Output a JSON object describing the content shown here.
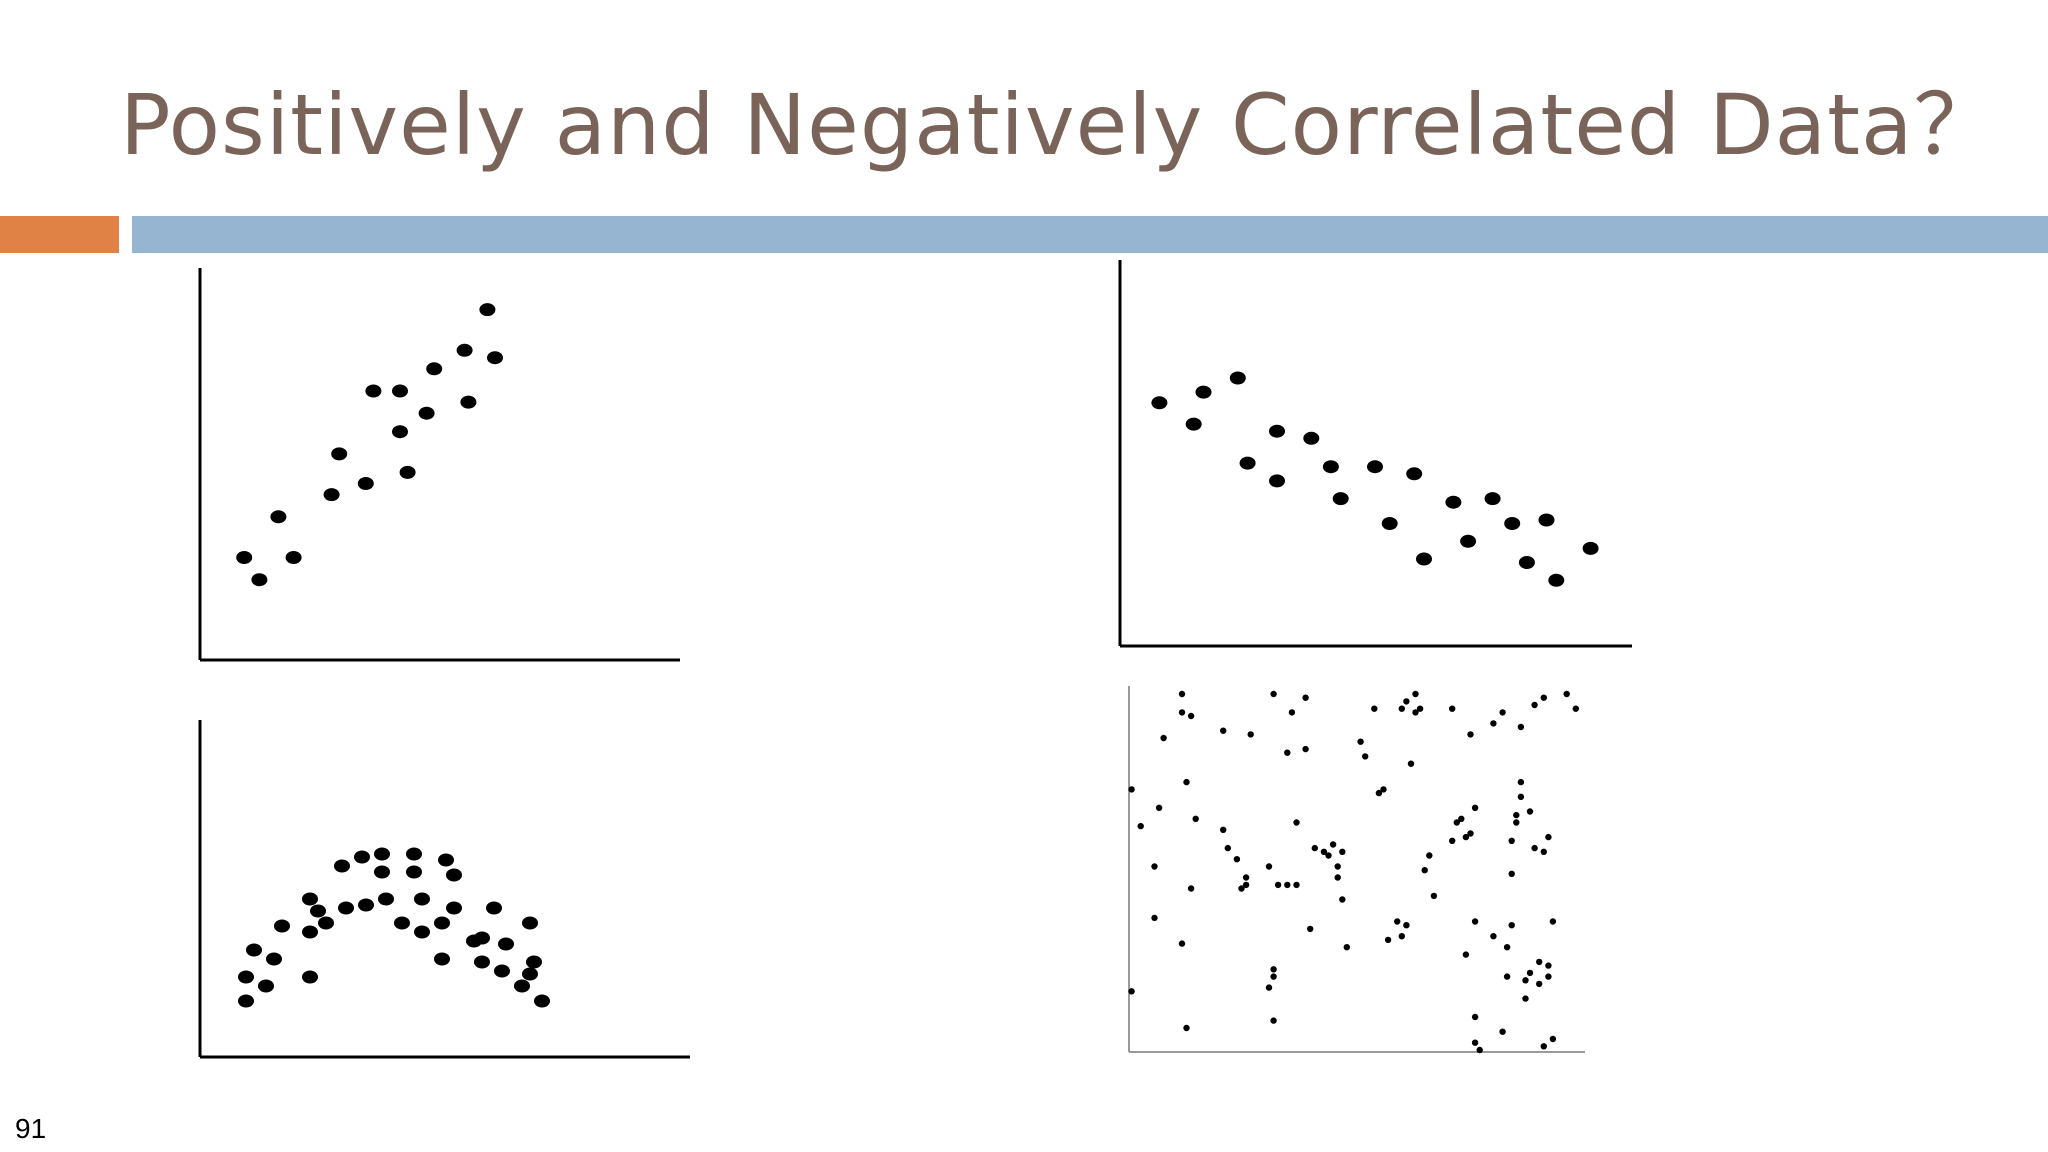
{
  "slide": {
    "title": "Positively and Negatively Correlated Data？",
    "page_number": "91",
    "colors": {
      "title": "#7a6459",
      "accent_bar": "#e08246",
      "title_bar": "#95b5d1",
      "points": "#000000"
    }
  },
  "chart_data": [
    {
      "id": "positive",
      "type": "scatter",
      "xlim": [
        0,
        100
      ],
      "ylim": [
        0,
        100
      ],
      "grid": false,
      "points": [
        [
          9,
          25
        ],
        [
          13,
          19
        ],
        [
          18,
          36
        ],
        [
          22,
          25
        ],
        [
          32,
          42
        ],
        [
          34,
          53
        ],
        [
          41,
          45
        ],
        [
          43,
          70
        ],
        [
          50,
          70
        ],
        [
          50,
          59
        ],
        [
          52,
          48
        ],
        [
          57,
          64
        ],
        [
          59,
          76
        ],
        [
          67,
          81
        ],
        [
          68,
          67
        ],
        [
          73,
          92
        ],
        [
          75,
          79
        ]
      ]
    },
    {
      "id": "negative",
      "type": "scatter",
      "xlim": [
        0,
        100
      ],
      "ylim": [
        0,
        100
      ],
      "grid": false,
      "points": [
        [
          6,
          64
        ],
        [
          13,
          58
        ],
        [
          15,
          67
        ],
        [
          22,
          71
        ],
        [
          24,
          47
        ],
        [
          30,
          42
        ],
        [
          30,
          56
        ],
        [
          37,
          54
        ],
        [
          41,
          46
        ],
        [
          43,
          37
        ],
        [
          50,
          46
        ],
        [
          53,
          30
        ],
        [
          58,
          44
        ],
        [
          60,
          20
        ],
        [
          66,
          36
        ],
        [
          69,
          25
        ],
        [
          74,
          37
        ],
        [
          78,
          30
        ],
        [
          81,
          19
        ],
        [
          85,
          31
        ],
        [
          87,
          14
        ],
        [
          94,
          23
        ]
      ]
    },
    {
      "id": "curvilinear",
      "type": "scatter",
      "xlim": [
        0,
        100
      ],
      "ylim": [
        0,
        100
      ],
      "grid": false,
      "points": [
        [
          9,
          13
        ],
        [
          9,
          21
        ],
        [
          11,
          30
        ],
        [
          14,
          18
        ],
        [
          16,
          27
        ],
        [
          18,
          38
        ],
        [
          25,
          47
        ],
        [
          25,
          36
        ],
        [
          25,
          21
        ],
        [
          27,
          43
        ],
        [
          29,
          39
        ],
        [
          33,
          58
        ],
        [
          34,
          44
        ],
        [
          38,
          61
        ],
        [
          39,
          45
        ],
        [
          43,
          62
        ],
        [
          43,
          56
        ],
        [
          44,
          47
        ],
        [
          48,
          39
        ],
        [
          51,
          62
        ],
        [
          51,
          56
        ],
        [
          53,
          47
        ],
        [
          53,
          36
        ],
        [
          58,
          39
        ],
        [
          58,
          27
        ],
        [
          59,
          60
        ],
        [
          61,
          44
        ],
        [
          61,
          55
        ],
        [
          66,
          33
        ],
        [
          68,
          34
        ],
        [
          68,
          26
        ],
        [
          71,
          44
        ],
        [
          73,
          23
        ],
        [
          74,
          32
        ],
        [
          78,
          18
        ],
        [
          80,
          39
        ],
        [
          80,
          22
        ],
        [
          81,
          26
        ],
        [
          83,
          13
        ]
      ]
    },
    {
      "id": "uncorrelated",
      "type": "scatter",
      "xlim": [
        0,
        100
      ],
      "ylim": [
        0,
        100
      ],
      "grid": false,
      "points": [
        [
          1,
          71
        ],
        [
          1,
          16
        ],
        [
          3,
          61
        ],
        [
          6,
          50
        ],
        [
          6,
          36
        ],
        [
          7,
          66
        ],
        [
          8,
          85
        ],
        [
          12,
          97
        ],
        [
          12,
          29
        ],
        [
          12,
          92
        ],
        [
          13,
          73
        ],
        [
          13,
          6
        ],
        [
          14,
          44
        ],
        [
          14,
          91
        ],
        [
          15,
          63
        ],
        [
          21,
          87
        ],
        [
          21,
          60
        ],
        [
          22,
          55
        ],
        [
          24,
          52
        ],
        [
          25,
          44
        ],
        [
          26,
          47
        ],
        [
          26,
          45
        ],
        [
          27,
          86
        ],
        [
          31,
          17
        ],
        [
          32,
          20
        ],
        [
          31,
          50
        ],
        [
          32,
          22
        ],
        [
          32,
          8
        ],
        [
          32,
          97
        ],
        [
          33,
          45
        ],
        [
          35,
          45
        ],
        [
          35,
          81
        ],
        [
          36,
          92
        ],
        [
          37,
          45
        ],
        [
          37,
          62
        ],
        [
          39,
          96
        ],
        [
          39,
          82
        ],
        [
          40,
          33
        ],
        [
          41,
          55
        ],
        [
          43,
          54
        ],
        [
          44,
          53
        ],
        [
          45,
          56
        ],
        [
          46,
          50
        ],
        [
          46,
          47
        ],
        [
          47,
          41
        ],
        [
          47,
          54
        ],
        [
          48,
          28
        ],
        [
          51,
          84
        ],
        [
          52,
          80
        ],
        [
          54,
          93
        ],
        [
          55,
          70
        ],
        [
          56,
          71
        ],
        [
          57,
          30
        ],
        [
          59,
          35
        ],
        [
          60,
          93
        ],
        [
          61,
          95
        ],
        [
          60,
          31
        ],
        [
          61,
          34
        ],
        [
          62,
          78
        ],
        [
          63,
          92
        ],
        [
          63,
          97
        ],
        [
          64,
          93
        ],
        [
          65,
          49
        ],
        [
          66,
          53
        ],
        [
          67,
          42
        ],
        [
          71,
          93
        ],
        [
          71,
          57
        ],
        [
          72,
          62
        ],
        [
          73,
          63
        ],
        [
          74,
          26
        ],
        [
          75,
          86
        ],
        [
          74,
          58
        ],
        [
          75,
          59
        ],
        [
          76,
          35
        ],
        [
          76,
          66
        ],
        [
          76,
          2
        ],
        [
          77,
          0
        ],
        [
          76,
          9
        ],
        [
          80,
          89
        ],
        [
          80,
          31
        ],
        [
          82,
          92
        ],
        [
          82,
          5
        ],
        [
          83,
          28
        ],
        [
          84,
          57
        ],
        [
          84,
          48
        ],
        [
          84,
          34
        ],
        [
          83,
          20
        ],
        [
          85,
          62
        ],
        [
          85,
          64
        ],
        [
          86,
          73
        ],
        [
          86,
          69
        ],
        [
          86,
          88
        ],
        [
          87,
          19
        ],
        [
          87,
          14
        ],
        [
          88,
          21
        ],
        [
          88,
          65
        ],
        [
          89,
          94
        ],
        [
          89,
          55
        ],
        [
          91,
          54
        ],
        [
          92,
          20
        ],
        [
          90,
          18
        ],
        [
          90,
          24
        ],
        [
          91,
          1
        ],
        [
          91,
          96
        ],
        [
          92,
          58
        ],
        [
          92,
          23
        ],
        [
          93,
          3
        ],
        [
          93,
          35
        ],
        [
          96,
          97
        ],
        [
          98,
          93
        ]
      ]
    }
  ]
}
